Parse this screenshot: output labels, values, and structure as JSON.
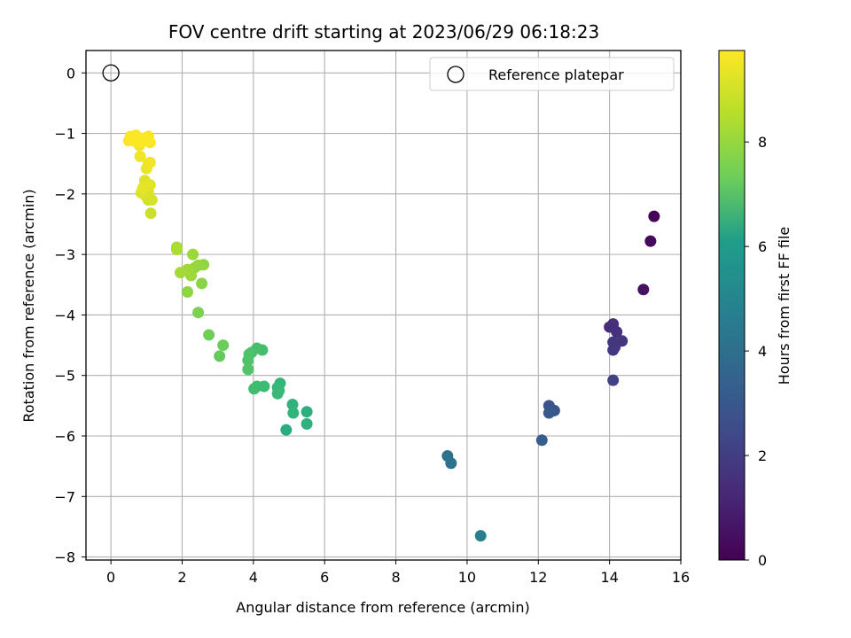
{
  "chart_data": {
    "type": "scatter",
    "title": "FOV centre drift starting at 2023/06/29 06:18:23",
    "xlabel": "Angular distance from reference (arcmin)",
    "ylabel": "Rotation from reference (arcmin)",
    "xlim": [
      -0.7,
      16.0
    ],
    "ylim": [
      -8.05,
      0.37
    ],
    "xticks": [
      0,
      2,
      4,
      6,
      8,
      10,
      12,
      14,
      16
    ],
    "xtick_labels": [
      "0",
      "2",
      "4",
      "6",
      "8",
      "10",
      "12",
      "14",
      "16"
    ],
    "yticks": [
      0,
      -1,
      -2,
      -3,
      -4,
      -5,
      -6,
      -7,
      -8
    ],
    "ytick_labels": [
      "0",
      "−1",
      "−2",
      "−3",
      "−4",
      "−5",
      "−6",
      "−7",
      "−8"
    ],
    "grid": true,
    "colormap": "viridis",
    "colorbar": {
      "label": "Hours from first FF file",
      "range": [
        0,
        9.75
      ],
      "ticks": [
        0,
        2,
        4,
        6,
        8
      ],
      "tick_labels": [
        "0",
        "2",
        "4",
        "6",
        "8"
      ]
    },
    "legend": {
      "placement": "upper right",
      "entries": [
        {
          "label": "Reference platepar",
          "marker": "open-circle",
          "color": "#000000"
        }
      ]
    },
    "reference_point": {
      "x": 0,
      "y": 0
    },
    "series": [
      {
        "x": [
          15.25,
          15.15,
          14.95,
          14.0,
          14.1,
          14.2,
          14.35,
          14.1,
          14.15,
          14.1,
          14.1,
          12.3,
          12.45,
          12.3,
          12.1,
          9.45,
          9.55,
          10.38,
          5.5,
          5.5,
          5.1,
          5.12,
          4.92,
          4.75,
          4.68,
          4.72,
          4.68,
          4.3,
          4.1,
          4.02,
          4.25,
          4.1,
          3.95,
          3.88,
          3.85,
          3.85,
          3.05,
          3.15,
          2.75,
          2.45,
          2.55,
          2.15,
          2.6,
          2.45,
          2.35,
          2.3,
          2.25,
          2.15,
          1.95,
          1.85,
          1.85,
          1.12,
          1.05,
          1.0,
          1.15,
          1.05,
          0.85,
          0.95,
          1.1,
          0.9,
          1.0,
          1.05,
          0.82,
          0.8,
          1.1,
          0.9,
          1.05,
          0.55,
          0.5,
          0.7,
          0.62,
          1.1,
          0.95,
          0.8
        ],
        "y": [
          -2.37,
          -2.78,
          -3.58,
          -4.2,
          -4.15,
          -4.28,
          -4.43,
          -4.45,
          -4.53,
          -4.58,
          -5.08,
          -5.5,
          -5.58,
          -5.62,
          -6.07,
          -6.33,
          -6.45,
          -7.65,
          -5.6,
          -5.8,
          -5.48,
          -5.62,
          -5.9,
          -5.13,
          -5.2,
          -5.25,
          -5.3,
          -5.18,
          -5.18,
          -5.22,
          -4.58,
          -4.55,
          -4.62,
          -4.65,
          -4.75,
          -4.9,
          -4.68,
          -4.5,
          -4.33,
          -3.96,
          -3.48,
          -3.62,
          -3.17,
          -3.18,
          -3.22,
          -3.0,
          -3.35,
          -3.25,
          -3.3,
          -2.88,
          -2.92,
          -2.32,
          -2.1,
          -2.05,
          -2.1,
          -1.98,
          -1.98,
          -1.78,
          -1.85,
          -1.9,
          -1.58,
          -1.5,
          -1.38,
          -1.2,
          -1.48,
          -1.12,
          -1.05,
          -1.05,
          -1.12,
          -1.03,
          -1.12,
          -1.15,
          -1.08,
          -1.15
        ],
        "hours": [
          0.05,
          0.2,
          0.45,
          1.2,
          1.3,
          1.35,
          1.45,
          1.5,
          1.55,
          1.6,
          1.9,
          2.45,
          2.6,
          2.7,
          2.85,
          3.6,
          3.7,
          4.2,
          6.1,
          6.2,
          6.3,
          6.35,
          6.0,
          6.4,
          6.5,
          6.55,
          6.6,
          6.65,
          6.7,
          6.75,
          6.8,
          6.85,
          6.9,
          6.95,
          7.0,
          7.05,
          7.4,
          7.5,
          7.6,
          7.8,
          8.0,
          8.05,
          8.1,
          8.15,
          8.2,
          8.25,
          8.3,
          8.35,
          8.4,
          8.45,
          8.5,
          9.0,
          9.05,
          9.1,
          9.15,
          9.2,
          9.25,
          9.3,
          9.35,
          9.4,
          9.45,
          9.5,
          9.55,
          9.6,
          9.55,
          9.6,
          9.65,
          9.7,
          9.72,
          9.74,
          9.75,
          9.7,
          9.72,
          9.74
        ]
      }
    ]
  }
}
